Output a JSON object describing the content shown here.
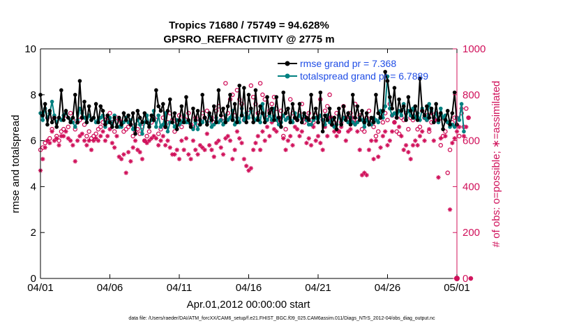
{
  "chart_data": {
    "type": "line",
    "title_line1": "Tropics 71680 / 75749 = 94.628%",
    "title_line2": "GPSRO_REFRACTIVITY @ 2775 m",
    "xlabel": "Apr.01,2012 00:00:00 start",
    "ylabel_left": "rmse and totalspread",
    "ylabel_right": "# of obs: o=possible; ∗=assimilated",
    "footnote": "data file: /Users/raeder/DAI/ATM_forcXX/CAM6_setup/f.e21.FHIST_BGC.f09_025.CAM6assim.011/Diags_NTrS_2012-04/obs_diag_output.nc",
    "x_ticks": [
      {
        "day": 0,
        "label": "04/01"
      },
      {
        "day": 5,
        "label": "04/06"
      },
      {
        "day": 10,
        "label": "04/11"
      },
      {
        "day": 15,
        "label": "04/16"
      },
      {
        "day": 20,
        "label": "04/21"
      },
      {
        "day": 25,
        "label": "04/26"
      },
      {
        "day": 30,
        "label": "05/01"
      }
    ],
    "xlim": [
      0,
      30
    ],
    "ylim_left": [
      0,
      10
    ],
    "ylim_right": [
      0,
      1000
    ],
    "left_ticks": [
      "0",
      "2",
      "4",
      "6",
      "8",
      "10"
    ],
    "right_ticks": [
      "0",
      "200",
      "400",
      "600",
      "800",
      "1000"
    ],
    "colors": {
      "rmse": "#000000",
      "spread": "#008080",
      "obs": "#d0105a",
      "legend_text": "#1f4de6",
      "right_axis": "#d0105a"
    },
    "legend": {
      "position": "top-right",
      "rmse_label": "rmse grand pr = 7.368",
      "spread_label": "totalspread grand pr = 6.7889"
    },
    "rmse": [
      8.0,
      7.1,
      7.6,
      6.7,
      7.3,
      6.8,
      7.0,
      6.6,
      7.0,
      8.2,
      6.9,
      7.3,
      7.0,
      6.8,
      7.0,
      8.0,
      6.8,
      8.6,
      7.0,
      7.7,
      6.8,
      7.5,
      6.9,
      7.0,
      7.6,
      6.8,
      7.5,
      7.3,
      6.7,
      7.1,
      6.8,
      6.6,
      7.0,
      6.6,
      7.0,
      6.7,
      7.2,
      6.9,
      7.1,
      6.7,
      7.2,
      6.3,
      7.3,
      7.0,
      6.8,
      7.2,
      6.8,
      6.6,
      7.1,
      6.9,
      8.2,
      7.5,
      7.3,
      7.6,
      6.6,
      7.3,
      7.8,
      6.8,
      7.2,
      6.5,
      6.9,
      7.5,
      6.8,
      7.9,
      6.9,
      6.6,
      7.4,
      6.9,
      7.3,
      6.7,
      8.0,
      7.0,
      6.7,
      7.2,
      6.9,
      7.5,
      6.8,
      8.2,
      7.1,
      7.4,
      6.8,
      7.5,
      8.0,
      6.9,
      7.6,
      6.8,
      8.4,
      7.1,
      8.3,
      6.8,
      8.0,
      7.4,
      6.8,
      8.2,
      6.9,
      7.5,
      7.2,
      6.8,
      7.9,
      7.2,
      7.4,
      6.9,
      7.9,
      7.0,
      6.6,
      8.1,
      7.2,
      7.4,
      6.8,
      7.6,
      7.0,
      6.9,
      7.6,
      6.8,
      7.2,
      7.0,
      6.9,
      8.0,
      7.0,
      7.4,
      6.8,
      8.1,
      6.4,
      7.1,
      6.9,
      7.4,
      6.7,
      7.0,
      6.5,
      7.4,
      6.7,
      7.5,
      6.9,
      7.2,
      6.7,
      8.0,
      7.0,
      7.5,
      6.9,
      7.3,
      6.8,
      7.2,
      6.7,
      7.0,
      6.8,
      8.0,
      7.2,
      7.0,
      7.3,
      9.0,
      8.6,
      7.9,
      7.4,
      8.3,
      7.0,
      7.8,
      7.3,
      7.5,
      6.9,
      7.9,
      7.3,
      7.0,
      7.5,
      6.9,
      8.7,
      7.3,
      7.1,
      7.5,
      7.0,
      7.4,
      6.8,
      7.6,
      6.9,
      7.2,
      6.5,
      6.9,
      7.3,
      6.7,
      7.2,
      8.1,
      6.7
    ],
    "totalspread": [
      7.2,
      6.9,
      7.4,
      7.0,
      7.2,
      7.7,
      7.1,
      6.8,
      7.0,
      6.9,
      7.1,
      7.2,
      7.0,
      6.9,
      6.8,
      6.6,
      6.9,
      7.4,
      7.2,
      7.0,
      6.8,
      7.1,
      6.9,
      7.0,
      6.8,
      6.9,
      7.0,
      7.1,
      6.6,
      6.8,
      7.0,
      6.7,
      7.1,
      6.6,
      6.6,
      6.6,
      6.8,
      7.0,
      6.8,
      6.9,
      6.5,
      6.7,
      6.9,
      6.7,
      6.3,
      6.8,
      7.1,
      6.7,
      6.9,
      7.3,
      6.6,
      7.1,
      6.6,
      6.7,
      7.2,
      6.4,
      6.8,
      6.8,
      6.6,
      6.9,
      6.7,
      6.8,
      7.1,
      6.8,
      6.8,
      6.6,
      6.5,
      6.8,
      6.5,
      6.9,
      6.8,
      7.0,
      6.8,
      7.1,
      6.6,
      6.7,
      7.0,
      6.8,
      6.9,
      6.7,
      7.1,
      6.9,
      7.0,
      7.3,
      6.7,
      7.0,
      6.8,
      7.4,
      6.9,
      7.2,
      7.0,
      7.3,
      7.0,
      6.9,
      7.0,
      6.8,
      7.6,
      7.0,
      6.9,
      7.1,
      6.9,
      7.4,
      6.9,
      6.7,
      6.8,
      7.1,
      6.9,
      7.0,
      6.9,
      6.8,
      7.2,
      6.9,
      7.1,
      6.8,
      7.1,
      6.9,
      6.7,
      6.7,
      6.9,
      7.0,
      6.8,
      7.1,
      6.9,
      6.7,
      7.1,
      6.8,
      6.9,
      6.6,
      6.7,
      7.1,
      6.7,
      7.0,
      6.9,
      6.8,
      7.0,
      6.8,
      6.7,
      6.8,
      7.0,
      6.9,
      6.6,
      6.9,
      6.8,
      6.7,
      7.0,
      6.9,
      6.8,
      7.3,
      7.0,
      7.5,
      8.8,
      7.4,
      7.1,
      7.2,
      7.0,
      7.3,
      7.1,
      7.6,
      7.0,
      7.3,
      7.1,
      7.4,
      7.0,
      7.2,
      6.9,
      7.4,
      7.0,
      6.9,
      7.6,
      7.3,
      7.0,
      7.2,
      6.8,
      7.4,
      7.0,
      7.1,
      6.8,
      6.6,
      6.7,
      6.6,
      7.0,
      6.9,
      7.6,
      6.4
    ],
    "n_possible": [
      560,
      570,
      590,
      700,
      610,
      650,
      700,
      620,
      600,
      640,
      650,
      710,
      660,
      720,
      690,
      650,
      680,
      690,
      700,
      670,
      620,
      640,
      610,
      620,
      630,
      650,
      660,
      680,
      690,
      700,
      720,
      680,
      640,
      700,
      690,
      680,
      640,
      650,
      660,
      670,
      620,
      640,
      650,
      630,
      660,
      600,
      620,
      640,
      680,
      700,
      690,
      630,
      650,
      700,
      660,
      680,
      720,
      690,
      640,
      680,
      710,
      660,
      700,
      690,
      720,
      670,
      660,
      700,
      680,
      690,
      720,
      700,
      730,
      690,
      700,
      680,
      730,
      750,
      690,
      700,
      850,
      720,
      780,
      800,
      710,
      820,
      780,
      760,
      690,
      700,
      720,
      840,
      790,
      760,
      720,
      850,
      800,
      780,
      700,
      730,
      760,
      790,
      740,
      700,
      730,
      620,
      650,
      700,
      780,
      720,
      700,
      690,
      720,
      760,
      680,
      700,
      720,
      690,
      680,
      710,
      700,
      780,
      690,
      730,
      750,
      800,
      670,
      680,
      720,
      640,
      680,
      750,
      700,
      690,
      720,
      680,
      760,
      690,
      710,
      650,
      640,
      700,
      730,
      690,
      660,
      620,
      640,
      700,
      680,
      720,
      690,
      760,
      710,
      680,
      640,
      630,
      700,
      690,
      720,
      650,
      700,
      690,
      720,
      650,
      660,
      730,
      700,
      710,
      640,
      680,
      700,
      720,
      690,
      580,
      620,
      640,
      460,
      560,
      680,
      700,
      700,
      620,
      720,
      660,
      740,
      700,
      0
    ],
    "n_assimilated": [
      470,
      520,
      570,
      600,
      590,
      640,
      600,
      610,
      580,
      620,
      620,
      640,
      610,
      600,
      580,
      510,
      600,
      620,
      630,
      600,
      580,
      600,
      560,
      600,
      610,
      600,
      620,
      640,
      600,
      620,
      650,
      590,
      570,
      620,
      530,
      520,
      540,
      460,
      550,
      510,
      570,
      600,
      560,
      550,
      520,
      600,
      590,
      600,
      610,
      620,
      610,
      580,
      600,
      620,
      580,
      600,
      570,
      540,
      540,
      560,
      520,
      600,
      560,
      610,
      540,
      520,
      600,
      560,
      540,
      580,
      570,
      560,
      630,
      580,
      560,
      530,
      590,
      600,
      570,
      540,
      610,
      620,
      600,
      520,
      560,
      640,
      610,
      590,
      520,
      490,
      470,
      480,
      560,
      590,
      620,
      560,
      640,
      600,
      660,
      620,
      680,
      650,
      640,
      690,
      700,
      610,
      560,
      600,
      620,
      580,
      660,
      650,
      620,
      640,
      700,
      590,
      610,
      580,
      660,
      600,
      620,
      590,
      560,
      660,
      620,
      700,
      700,
      640,
      620,
      640,
      660,
      700,
      600,
      640,
      650,
      700,
      680,
      640,
      560,
      450,
      460,
      450,
      560,
      600,
      520,
      600,
      530,
      570,
      620,
      640,
      580,
      600,
      640,
      680,
      700,
      660,
      620,
      560,
      580,
      550,
      520,
      580,
      600,
      580,
      620,
      640,
      600,
      690,
      650,
      720,
      600,
      690,
      440,
      610,
      700,
      620,
      680,
      300,
      590,
      610,
      640,
      660,
      740,
      620,
      660,
      700,
      0
    ]
  }
}
